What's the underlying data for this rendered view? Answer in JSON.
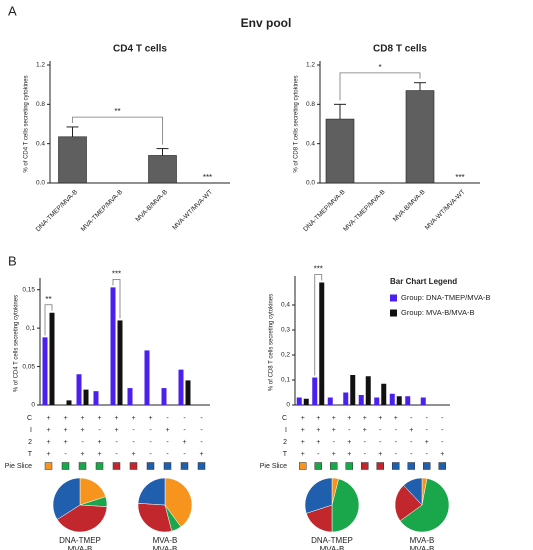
{
  "panels": [
    "A",
    "B"
  ],
  "title": "Env pool",
  "chart_data": [
    {
      "type": "bar",
      "title": "CD4 T cells",
      "ylabel": "% of CD4 T cells secreting cytokines",
      "categories": [
        "DNA-TMEP/MVA-B",
        "MVA-TMEP/MVA-B",
        "MVA-B/MVA-B",
        "MVA-WT/MVA-WT"
      ],
      "values": [
        0.47,
        0,
        0.28,
        0
      ],
      "errors": [
        0.1,
        0,
        0.07,
        0
      ],
      "color": "#5f5f5f",
      "ylim": [
        0,
        1.2
      ],
      "yticks": [
        {
          "value": 0,
          "label": "0.0"
        },
        {
          "value": 0.4,
          "label": "0.4"
        },
        {
          "value": 0.8,
          "label": "0.8"
        },
        {
          "value": 1.2,
          "label": "1.2"
        }
      ],
      "annotations": [
        "**",
        "***"
      ]
    },
    {
      "type": "bar",
      "title": "CD8 T cells",
      "ylabel": "% of CD8 T cells secreting cytokines",
      "categories": [
        "DNA-TMEP/MVA-B",
        "MVA-TMEP/MVA-B",
        "MVA-B/MVA-B",
        "MVA-WT/MVA-WT"
      ],
      "values": [
        0.65,
        0,
        0.94,
        0
      ],
      "errors": [
        0.15,
        0,
        0.08,
        0
      ],
      "color": "#5f5f5f",
      "ylim": [
        0,
        1.2
      ],
      "yticks": [
        {
          "value": 0,
          "label": "0.0"
        },
        {
          "value": 0.4,
          "label": "0.4"
        },
        {
          "value": 0.8,
          "label": "0.8"
        },
        {
          "value": 1.2,
          "label": "1.2"
        }
      ],
      "annotations": [
        "*",
        "***"
      ]
    },
    {
      "type": "grouped_bar",
      "ylabel": "% of CD4 T cells secreting cytokines",
      "rows": [
        "C",
        "I",
        "2",
        "T"
      ],
      "signs": [
        [
          "+",
          "+",
          "+",
          "+",
          "+",
          "+",
          "+",
          "-",
          "-",
          "-"
        ],
        [
          "+",
          "+",
          "+",
          "-",
          "+",
          "-",
          "-",
          "+",
          "-",
          "-"
        ],
        [
          "+",
          "+",
          "-",
          "+",
          "-",
          "-",
          "-",
          "-",
          "+",
          "-"
        ],
        [
          "+",
          "-",
          "+",
          "+",
          "-",
          "+",
          "-",
          "-",
          "-",
          "+"
        ]
      ],
      "pie_row": "Pie Slice",
      "pie_colors": [
        "#f7941d",
        "#1aa64a",
        "#1aa64a",
        "#1aa64a",
        "#c1272d",
        "#c1272d",
        "#1f5fad",
        "#1f5fad",
        "#1f5fad",
        "#1f5fad"
      ],
      "series": [
        {
          "color": "#4b1ff0",
          "values": [
            0.088,
            0,
            0.04,
            0.018,
            0.153,
            0.022,
            0.071,
            0.022,
            0.046,
            0
          ]
        },
        {
          "color": "#111111",
          "values": [
            0.12,
            0.006,
            0.02,
            0,
            0.11,
            0,
            0,
            0,
            0.032,
            0
          ]
        }
      ],
      "ylim": [
        0,
        0.16
      ],
      "yticks": [
        0,
        {
          "value": 0.05,
          "label": "0,05"
        },
        {
          "value": 0.1,
          "label": "0,1"
        },
        {
          "value": 0.15,
          "label": "0,15"
        }
      ],
      "annotations": [
        "**",
        "***"
      ]
    },
    {
      "type": "grouped_bar",
      "ylabel": "% of CD8 T cells secreting cytokines",
      "rows": [
        "C",
        "I",
        "2",
        "T"
      ],
      "signs": [
        [
          "+",
          "+",
          "+",
          "+",
          "+",
          "+",
          "+",
          "-",
          "-",
          "-"
        ],
        [
          "+",
          "+",
          "+",
          "-",
          "+",
          "-",
          "-",
          "+",
          "-",
          "-"
        ],
        [
          "+",
          "+",
          "-",
          "+",
          "-",
          "-",
          "-",
          "-",
          "+",
          "-"
        ],
        [
          "+",
          "-",
          "+",
          "+",
          "-",
          "+",
          "-",
          "-",
          "-",
          "+"
        ]
      ],
      "pie_row": "Pie Slice",
      "pie_colors": [
        "#f7941d",
        "#1aa64a",
        "#1aa64a",
        "#1aa64a",
        "#c1272d",
        "#c1272d",
        "#1f5fad",
        "#1f5fad",
        "#1f5fad",
        "#1f5fad"
      ],
      "series": [
        {
          "name": "Group: DNA-TMEP/MVA-B",
          "color": "#4b1ff0",
          "values": [
            0.03,
            0.11,
            0.03,
            0.05,
            0.04,
            0.03,
            0.045,
            0.035,
            0.03,
            0
          ]
        },
        {
          "name": "Group: MVA-B/MVA-B",
          "color": "#111111",
          "values": [
            0.025,
            0.49,
            0,
            0.12,
            0.115,
            0.085,
            0.035,
            0,
            0,
            0
          ]
        }
      ],
      "ylim": [
        0,
        0.5
      ],
      "yticks": [
        0,
        {
          "value": 0.1,
          "label": "0,1"
        },
        {
          "value": 0.2,
          "label": "0,2"
        },
        {
          "value": 0.3,
          "label": "0,3"
        },
        {
          "value": 0.4,
          "label": "0,4"
        }
      ],
      "legend": {
        "title": "Bar Chart Legend"
      },
      "annotations": [
        "***"
      ]
    },
    {
      "type": "pie",
      "values": [
        20,
        6,
        40,
        34
      ],
      "colors": [
        "#f7941d",
        "#1aa64a",
        "#c1272d",
        "#1f5fad"
      ],
      "label": [
        "DNA-TMEP",
        "MVA-B"
      ]
    },
    {
      "type": "pie",
      "values": [
        40,
        6,
        30,
        24
      ],
      "colors": [
        "#f7941d",
        "#1aa64a",
        "#c1272d",
        "#1f5fad"
      ],
      "label": [
        "MVA-B",
        "MVA-B"
      ]
    },
    {
      "type": "pie",
      "values": [
        4,
        46,
        20,
        30
      ],
      "colors": [
        "#f7941d",
        "#1aa64a",
        "#c1272d",
        "#1f5fad"
      ],
      "label": [
        "DNA-TMEP",
        "MVA-B"
      ]
    },
    {
      "type": "pie",
      "values": [
        3,
        62,
        23,
        12
      ],
      "colors": [
        "#f7941d",
        "#1aa64a",
        "#c1272d",
        "#1f5fad"
      ],
      "label": [
        "MVA-B",
        "MVA-B"
      ]
    }
  ]
}
